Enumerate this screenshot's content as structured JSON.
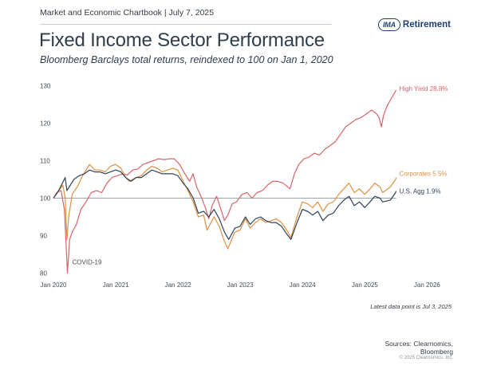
{
  "header": {
    "chartbook": "Market and Economic Chartbook | July 7, 2025",
    "logo_badge": "IMA",
    "logo_word": "Retirement",
    "logo_icon": "ima-retirement-logo"
  },
  "footer": {
    "latest": "Latest data point is Jul 3, 2025",
    "sources": "Sources: Clearnomics,",
    "sources2": "Bloomberg",
    "copyright": "© 2025 Clearnomics, Inc."
  },
  "colors": {
    "high_yield": "#d9646a",
    "corporates": "#e0913f",
    "agg": "#2f4358",
    "baseline": "#7d8790",
    "axis_text": "#444c55"
  },
  "chart_data": {
    "type": "line",
    "title": "Fixed Income Sector Performance",
    "subtitle": "Bloomberg Barclays total returns, reindexed to 100 on Jan 1, 2020",
    "xlabel": "",
    "ylabel": "",
    "xlim": [
      "2020-01-01",
      "2026-02-15"
    ],
    "ylim": [
      78,
      132
    ],
    "x_ticks": [
      "Jan 2020",
      "Jan 2021",
      "Jan 2022",
      "Jan 2023",
      "Jan 2024",
      "Jan 2025",
      "Jan 2026"
    ],
    "y_ticks": [
      80,
      90,
      100,
      110,
      120,
      130
    ],
    "grid": false,
    "reference_line": 100,
    "annotation": "COVID-19",
    "series": [
      {
        "name": "High Yield",
        "end_label": "High Yield 28.8%",
        "points": [
          [
            "2020-01-01",
            100
          ],
          [
            "2020-01-20",
            101.5
          ],
          [
            "2020-02-15",
            102
          ],
          [
            "2020-03-05",
            97
          ],
          [
            "2020-03-15",
            88
          ],
          [
            "2020-03-23",
            80
          ],
          [
            "2020-04-05",
            89
          ],
          [
            "2020-04-20",
            91
          ],
          [
            "2020-05-15",
            93
          ],
          [
            "2020-06-10",
            97
          ],
          [
            "2020-07-10",
            99
          ],
          [
            "2020-08-10",
            101.5
          ],
          [
            "2020-09-10",
            102
          ],
          [
            "2020-10-10",
            101.5
          ],
          [
            "2020-11-10",
            104
          ],
          [
            "2020-12-10",
            105.5
          ],
          [
            "2021-01-10",
            106
          ],
          [
            "2021-02-10",
            106.5
          ],
          [
            "2021-03-10",
            106.2
          ],
          [
            "2021-04-10",
            107.5
          ],
          [
            "2021-05-10",
            107.8
          ],
          [
            "2021-06-10",
            109
          ],
          [
            "2021-07-10",
            109.5
          ],
          [
            "2021-08-10",
            110
          ],
          [
            "2021-09-10",
            110.5
          ],
          [
            "2021-10-10",
            110.3
          ],
          [
            "2021-11-10",
            110.5
          ],
          [
            "2021-12-10",
            110.5
          ],
          [
            "2022-01-10",
            109
          ],
          [
            "2022-02-10",
            106.5
          ],
          [
            "2022-03-10",
            104.5
          ],
          [
            "2022-03-30",
            106.5
          ],
          [
            "2022-04-20",
            103
          ],
          [
            "2022-05-20",
            100
          ],
          [
            "2022-06-10",
            97.5
          ],
          [
            "2022-06-30",
            94.5
          ],
          [
            "2022-07-20",
            98
          ],
          [
            "2022-08-15",
            100.5
          ],
          [
            "2022-09-10",
            97
          ],
          [
            "2022-09-30",
            94
          ],
          [
            "2022-10-20",
            95.5
          ],
          [
            "2022-11-15",
            98.5
          ],
          [
            "2022-12-10",
            99
          ],
          [
            "2023-01-10",
            101
          ],
          [
            "2023-02-10",
            101.5
          ],
          [
            "2023-03-10",
            100
          ],
          [
            "2023-04-10",
            101.5
          ],
          [
            "2023-05-10",
            102
          ],
          [
            "2023-06-10",
            103.5
          ],
          [
            "2023-07-10",
            104.5
          ],
          [
            "2023-08-10",
            104.5
          ],
          [
            "2023-09-10",
            104
          ],
          [
            "2023-10-20",
            102.5
          ],
          [
            "2023-11-15",
            106.5
          ],
          [
            "2023-12-10",
            109
          ],
          [
            "2024-01-10",
            110.5
          ],
          [
            "2024-02-10",
            111
          ],
          [
            "2024-03-10",
            112
          ],
          [
            "2024-04-10",
            111.5
          ],
          [
            "2024-05-10",
            113
          ],
          [
            "2024-06-10",
            114
          ],
          [
            "2024-07-10",
            115
          ],
          [
            "2024-08-10",
            117
          ],
          [
            "2024-09-10",
            119
          ],
          [
            "2024-10-10",
            120
          ],
          [
            "2024-11-10",
            121
          ],
          [
            "2024-12-10",
            121.5
          ],
          [
            "2025-01-10",
            122.5
          ],
          [
            "2025-02-10",
            123.5
          ],
          [
            "2025-03-10",
            122.5
          ],
          [
            "2025-03-25",
            121.5
          ],
          [
            "2025-04-08",
            119
          ],
          [
            "2025-04-20",
            122
          ],
          [
            "2025-05-10",
            124.5
          ],
          [
            "2025-06-10",
            127
          ],
          [
            "2025-07-03",
            128.8
          ]
        ]
      },
      {
        "name": "Corporates",
        "end_label": "Corporates 5.5%",
        "points": [
          [
            "2020-01-01",
            100
          ],
          [
            "2020-01-25",
            101.5
          ],
          [
            "2020-02-25",
            103.5
          ],
          [
            "2020-03-10",
            100
          ],
          [
            "2020-03-20",
            89
          ],
          [
            "2020-03-30",
            95
          ],
          [
            "2020-04-20",
            101
          ],
          [
            "2020-05-20",
            103
          ],
          [
            "2020-06-20",
            106
          ],
          [
            "2020-07-31",
            109
          ],
          [
            "2020-08-31",
            107.5
          ],
          [
            "2020-09-30",
            107.5
          ],
          [
            "2020-10-31",
            107
          ],
          [
            "2020-11-30",
            108.5
          ],
          [
            "2020-12-31",
            109
          ],
          [
            "2021-01-31",
            108
          ],
          [
            "2021-02-28",
            105.5
          ],
          [
            "2021-03-20",
            104.5
          ],
          [
            "2021-04-30",
            105.5
          ],
          [
            "2021-05-31",
            106
          ],
          [
            "2021-06-30",
            107.5
          ],
          [
            "2021-07-31",
            108.5
          ],
          [
            "2021-08-31",
            108
          ],
          [
            "2021-09-30",
            107
          ],
          [
            "2021-10-31",
            107.5
          ],
          [
            "2021-11-30",
            108
          ],
          [
            "2021-12-31",
            107.5
          ],
          [
            "2022-01-31",
            104.5
          ],
          [
            "2022-02-28",
            102
          ],
          [
            "2022-03-31",
            99
          ],
          [
            "2022-04-30",
            95
          ],
          [
            "2022-05-31",
            95.5
          ],
          [
            "2022-06-20",
            91.5
          ],
          [
            "2022-07-31",
            95
          ],
          [
            "2022-08-31",
            92.5
          ],
          [
            "2022-09-30",
            88.5
          ],
          [
            "2022-10-20",
            86.5
          ],
          [
            "2022-11-30",
            91
          ],
          [
            "2022-12-31",
            91.5
          ],
          [
            "2023-01-31",
            94.5
          ],
          [
            "2023-02-28",
            92
          ],
          [
            "2023-03-31",
            93.5
          ],
          [
            "2023-04-30",
            94.5
          ],
          [
            "2023-05-31",
            93.5
          ],
          [
            "2023-06-30",
            94
          ],
          [
            "2023-07-31",
            94.5
          ],
          [
            "2023-08-31",
            93.5
          ],
          [
            "2023-09-30",
            91.5
          ],
          [
            "2023-10-25",
            89.5
          ],
          [
            "2023-11-30",
            95
          ],
          [
            "2023-12-31",
            99
          ],
          [
            "2024-01-31",
            98.5
          ],
          [
            "2024-02-29",
            97.5
          ],
          [
            "2024-03-31",
            99
          ],
          [
            "2024-04-30",
            96.5
          ],
          [
            "2024-05-31",
            98.5
          ],
          [
            "2024-06-30",
            99
          ],
          [
            "2024-07-31",
            101
          ],
          [
            "2024-08-31",
            102.5
          ],
          [
            "2024-09-30",
            104
          ],
          [
            "2024-10-31",
            101.5
          ],
          [
            "2024-11-30",
            102.5
          ],
          [
            "2024-12-31",
            101
          ],
          [
            "2025-01-31",
            102.5
          ],
          [
            "2025-02-28",
            104
          ],
          [
            "2025-03-31",
            103
          ],
          [
            "2025-04-15",
            101.5
          ],
          [
            "2025-05-31",
            103
          ],
          [
            "2025-06-30",
            105
          ],
          [
            "2025-07-03",
            105.5
          ]
        ]
      },
      {
        "name": "U.S. Agg",
        "end_label": "U.S. Agg 1.9%",
        "points": [
          [
            "2020-01-01",
            100
          ],
          [
            "2020-01-31",
            102
          ],
          [
            "2020-02-28",
            104.5
          ],
          [
            "2020-03-10",
            105.5
          ],
          [
            "2020-03-20",
            102
          ],
          [
            "2020-04-30",
            105
          ],
          [
            "2020-05-31",
            106
          ],
          [
            "2020-06-30",
            106.5
          ],
          [
            "2020-07-31",
            107.5
          ],
          [
            "2020-08-31",
            107
          ],
          [
            "2020-09-30",
            107
          ],
          [
            "2020-10-31",
            106.5
          ],
          [
            "2020-11-30",
            107
          ],
          [
            "2020-12-31",
            107.5
          ],
          [
            "2021-01-31",
            107
          ],
          [
            "2021-02-28",
            105.5
          ],
          [
            "2021-03-31",
            104.5
          ],
          [
            "2021-04-30",
            105.5
          ],
          [
            "2021-05-31",
            105.5
          ],
          [
            "2021-06-30",
            106.5
          ],
          [
            "2021-07-31",
            107.5
          ],
          [
            "2021-08-31",
            107
          ],
          [
            "2021-09-30",
            106.5
          ],
          [
            "2021-10-31",
            106.5
          ],
          [
            "2021-11-30",
            106.5
          ],
          [
            "2021-12-31",
            106
          ],
          [
            "2022-01-31",
            104
          ],
          [
            "2022-02-28",
            102.5
          ],
          [
            "2022-03-31",
            100
          ],
          [
            "2022-04-30",
            96
          ],
          [
            "2022-05-31",
            96.5
          ],
          [
            "2022-06-30",
            95
          ],
          [
            "2022-07-31",
            97
          ],
          [
            "2022-08-31",
            94.5
          ],
          [
            "2022-09-30",
            91
          ],
          [
            "2022-10-25",
            89
          ],
          [
            "2022-11-30",
            92
          ],
          [
            "2022-12-31",
            92.5
          ],
          [
            "2023-01-31",
            95
          ],
          [
            "2023-02-28",
            93
          ],
          [
            "2023-03-31",
            94.5
          ],
          [
            "2023-04-30",
            95
          ],
          [
            "2023-05-31",
            94
          ],
          [
            "2023-06-30",
            93.5
          ],
          [
            "2023-07-31",
            93.5
          ],
          [
            "2023-08-31",
            92.5
          ],
          [
            "2023-09-30",
            90.5
          ],
          [
            "2023-10-25",
            89
          ],
          [
            "2023-11-30",
            93.5
          ],
          [
            "2023-12-31",
            97
          ],
          [
            "2024-01-31",
            96.5
          ],
          [
            "2024-02-29",
            95.5
          ],
          [
            "2024-03-31",
            96.5
          ],
          [
            "2024-04-30",
            94
          ],
          [
            "2024-05-31",
            95.5
          ],
          [
            "2024-06-30",
            96
          ],
          [
            "2024-07-31",
            98
          ],
          [
            "2024-08-31",
            99.5
          ],
          [
            "2024-09-30",
            100.5
          ],
          [
            "2024-10-31",
            98
          ],
          [
            "2024-11-30",
            99
          ],
          [
            "2024-12-31",
            97.5
          ],
          [
            "2025-01-31",
            99
          ],
          [
            "2025-02-28",
            100.5
          ],
          [
            "2025-03-31",
            100
          ],
          [
            "2025-04-15",
            99
          ],
          [
            "2025-05-31",
            99.5
          ],
          [
            "2025-06-30",
            101.5
          ],
          [
            "2025-07-03",
            101.9
          ]
        ]
      }
    ]
  }
}
